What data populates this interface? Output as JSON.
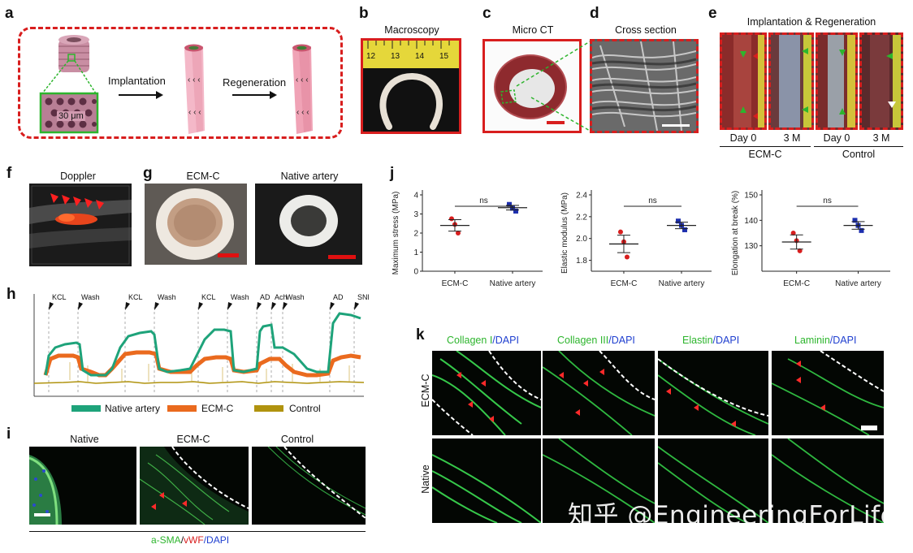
{
  "panels": {
    "a": {
      "label": "a",
      "scale_text": "30 μm",
      "arrow1": "Implantation",
      "arrow2": "Regeneration"
    },
    "b": {
      "label": "b",
      "title": "Macroscopy",
      "ruler_ticks": [
        "12",
        "13",
        "14",
        "15"
      ]
    },
    "c": {
      "label": "c",
      "title": "Micro CT"
    },
    "d": {
      "label": "d",
      "title": "Cross section"
    },
    "e": {
      "label": "e",
      "title": "Implantation & Regeneration",
      "times": [
        "Day 0",
        "3 M",
        "Day 0",
        "3 M"
      ],
      "groups": [
        "ECM-C",
        "Control"
      ]
    },
    "f": {
      "label": "f",
      "title": "Doppler"
    },
    "g": {
      "label": "g",
      "titles": [
        "ECM-C",
        "Native artery"
      ]
    },
    "h": {
      "label": "h",
      "events": [
        "KCL",
        "Wash",
        "KCL",
        "Wash",
        "KCL",
        "Wash",
        "AD",
        "Ach",
        "Wash",
        "AD",
        "SNP"
      ],
      "legend": [
        "Native artery",
        "ECM-C",
        "Control"
      ]
    },
    "i": {
      "label": "i",
      "titles": [
        "Native",
        "ECM-C",
        "Control"
      ],
      "caption": {
        "p1": "a-SMA",
        "p2": "/",
        "p3": "vWF",
        "p4": "/DAPI"
      }
    },
    "j": {
      "label": "j"
    },
    "k": {
      "label": "k",
      "columns": [
        {
          "stain": "Collagen I",
          "dapi": "/DAPI"
        },
        {
          "stain": "Collagen III",
          "dapi": "/DAPI"
        },
        {
          "stain": "Elastin",
          "dapi": "/DAPI"
        },
        {
          "stain": "Laminin",
          "dapi": "/DAPI"
        }
      ],
      "rows": [
        "ECM-C",
        "Native"
      ]
    }
  },
  "watermark": "知乎 @EngineeringForLife",
  "colors": {
    "red": "#d81e1e",
    "green": "#2db52d",
    "native": "#1ea37a",
    "ecm": "#ea6a1e",
    "control": "#b0930e",
    "blue_sq": "#1d2fae"
  },
  "chart_data": [
    {
      "type": "scatter",
      "categories": [
        "ECM-C",
        "Native artery"
      ],
      "ylabel": "Maximum stress (MPa)",
      "ylim": [
        0,
        4
      ],
      "yticks": [
        "0",
        "1",
        "2",
        "3",
        "4"
      ],
      "points": {
        "ECM-C": [
          2.75,
          2.45,
          2.0
        ],
        "Native artery": [
          3.5,
          3.3,
          3.15
        ]
      },
      "means": [
        2.4,
        3.33
      ],
      "errors": [
        0.3,
        0.12
      ],
      "annotation": "ns"
    },
    {
      "type": "scatter",
      "categories": [
        "ECM-C",
        "Native artery"
      ],
      "ylabel": "Elastic modulus (MPa)",
      "ylim": [
        1.7,
        2.4
      ],
      "yticks": [
        "1.8",
        "2.0",
        "2.2",
        "2.4"
      ],
      "points": {
        "ECM-C": [
          2.06,
          1.97,
          1.83
        ],
        "Native artery": [
          2.16,
          2.12,
          2.08
        ]
      },
      "means": [
        1.95,
        2.12
      ],
      "errors": [
        0.08,
        0.03
      ],
      "annotation": "ns"
    },
    {
      "type": "scatter",
      "categories": [
        "ECM-C",
        "Native artery"
      ],
      "ylabel": "Elongation at break (%)",
      "ylim": [
        120,
        150
      ],
      "yticks": [
        "130",
        "140",
        "150"
      ],
      "points": {
        "ECM-C": [
          135,
          132,
          128
        ],
        "Native artery": [
          140,
          138,
          136
        ]
      },
      "means": [
        131.5,
        138
      ],
      "errors": [
        2.8,
        1.5
      ],
      "annotation": "ns"
    }
  ]
}
